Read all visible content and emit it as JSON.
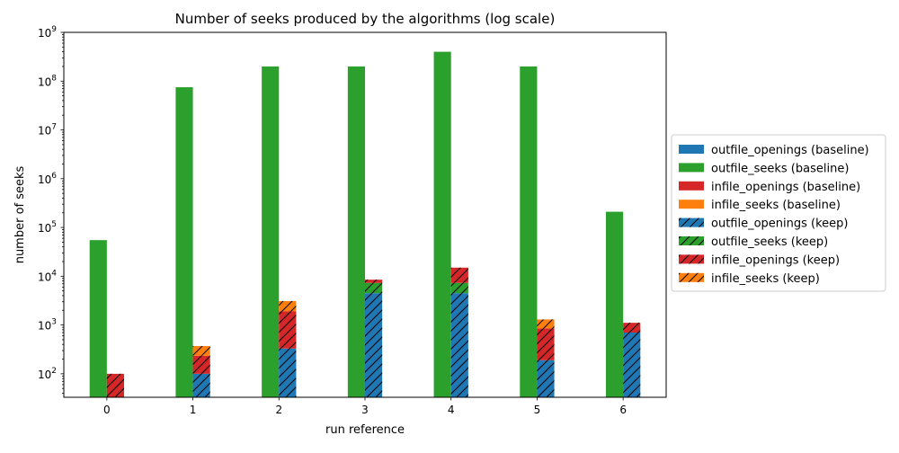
{
  "chart_data": {
    "type": "bar",
    "title": "Number of seeks produced by the algorithms (log scale)",
    "xlabel": "run reference",
    "ylabel": "number of seeks",
    "yscale": "log",
    "ylim": [
      33,
      1000000000
    ],
    "y_ticks": [
      {
        "value": 100,
        "base": "10",
        "exp": "2"
      },
      {
        "value": 1000,
        "base": "10",
        "exp": "3"
      },
      {
        "value": 10000,
        "base": "10",
        "exp": "4"
      },
      {
        "value": 100000,
        "base": "10",
        "exp": "5"
      },
      {
        "value": 1000000,
        "base": "10",
        "exp": "6"
      },
      {
        "value": 10000000,
        "base": "10",
        "exp": "7"
      },
      {
        "value": 100000000,
        "base": "10",
        "exp": "8"
      },
      {
        "value": 1000000000,
        "base": "10",
        "exp": "9"
      }
    ],
    "categories": [
      "0",
      "1",
      "2",
      "3",
      "4",
      "5",
      "6"
    ],
    "legend_position": "center-right, outside plot",
    "grid": false,
    "colors": {
      "blue": "#1f77b4",
      "green": "#2ca02c",
      "red": "#d62728",
      "orange": "#ff7f0e"
    },
    "stacks": {
      "baseline": {
        "series": [
          {
            "name": "outfile_openings (baseline)",
            "color": "#1f77b4",
            "hatch": false,
            "values": [
              0,
              0,
              0,
              0,
              0,
              0,
              0
            ]
          },
          {
            "name": "outfile_seeks (baseline)",
            "color": "#2ca02c",
            "hatch": false,
            "values": [
              55000,
              75000000,
              200000000,
              200000000,
              400000000,
              200000000,
              210000
            ]
          },
          {
            "name": "infile_openings (baseline)",
            "color": "#d62728",
            "hatch": false,
            "values": [
              0,
              0,
              0,
              0,
              0,
              0,
              0
            ]
          },
          {
            "name": "infile_seeks (baseline)",
            "color": "#ff7f0e",
            "hatch": false,
            "values": [
              0,
              0,
              0,
              0,
              0,
              0,
              0
            ]
          }
        ]
      },
      "keep": {
        "series": [
          {
            "name": "outfile_openings (keep)",
            "color": "#1f77b4",
            "hatch": true,
            "values": [
              0,
              100,
              330,
              4500,
              4500,
              190,
              700
            ]
          },
          {
            "name": "outfile_seeks (keep)",
            "color": "#2ca02c",
            "hatch": true,
            "values": [
              0,
              0,
              0,
              2800,
              2800,
              0,
              0
            ]
          },
          {
            "name": "infile_openings (keep)",
            "color": "#d62728",
            "hatch": true,
            "values": [
              100,
              135,
              1570,
              1200,
              7700,
              660,
              410
            ]
          },
          {
            "name": "infile_seeks (keep)",
            "color": "#ff7f0e",
            "hatch": true,
            "values": [
              0,
              135,
              1200,
              0,
              0,
              450,
              0
            ]
          }
        ]
      }
    }
  }
}
